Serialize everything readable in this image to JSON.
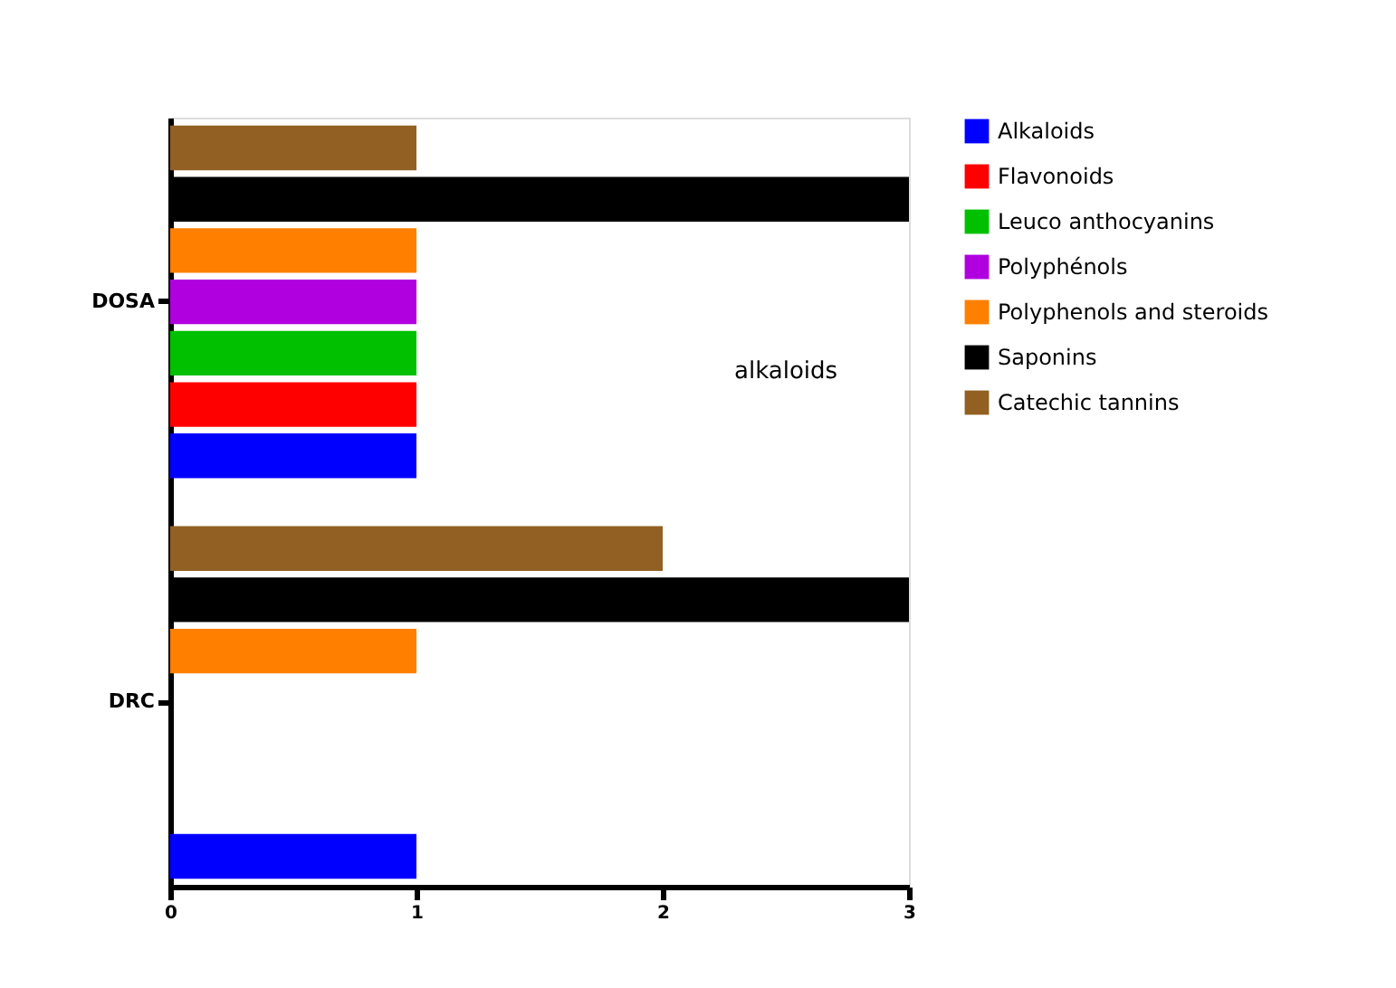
{
  "chart_data": {
    "type": "bar",
    "orientation": "horizontal",
    "categories": [
      "DOSA",
      "DRC"
    ],
    "series": [
      {
        "name": "Alkaloids",
        "color": "#0000ff",
        "values": [
          1,
          1
        ]
      },
      {
        "name": "Flavonoids",
        "color": "#ff0000",
        "values": [
          1,
          0
        ]
      },
      {
        "name": "Leuco anthocyanins",
        "color": "#00c000",
        "values": [
          1,
          0
        ]
      },
      {
        "name": "Polyphénols",
        "color": "#b000e0",
        "values": [
          1,
          0
        ]
      },
      {
        "name": "Polyphenols and steroids",
        "color": "#ff8000",
        "values": [
          1,
          1
        ]
      },
      {
        "name": "Saponins",
        "color": "#000000",
        "values": [
          3,
          3
        ]
      },
      {
        "name": "Catechic tannins",
        "color": "#926023",
        "values": [
          1,
          2
        ]
      }
    ],
    "xlim": [
      0,
      3
    ],
    "xticks": [
      0,
      1,
      2,
      3
    ],
    "annotations": [
      "alkaloids"
    ],
    "grid": false,
    "legend": "right"
  }
}
